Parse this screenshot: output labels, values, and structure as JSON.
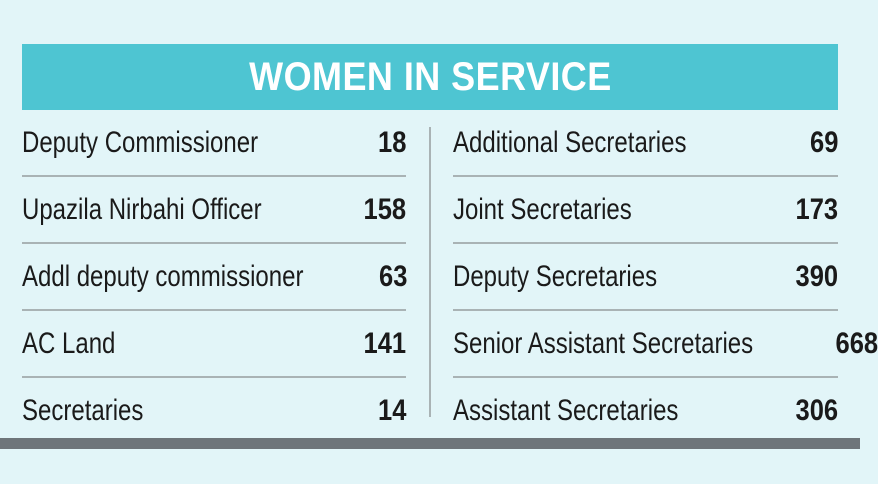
{
  "chart_data": {
    "type": "table",
    "title": "WOMEN IN SERVICE",
    "left_column": [
      {
        "label": "Deputy Commissioner",
        "value": 18
      },
      {
        "label": "Upazila Nirbahi Officer",
        "value": 158
      },
      {
        "label": "Addl deputy commissioner",
        "value": 63
      },
      {
        "label": "AC Land",
        "value": 141
      },
      {
        "label": "Secretaries",
        "value": 14
      }
    ],
    "right_column": [
      {
        "label": "Additional Secretaries",
        "value": 69
      },
      {
        "label": "Joint Secretaries",
        "value": 173
      },
      {
        "label": "Deputy Secretaries",
        "value": 390
      },
      {
        "label": "Senior Assistant Secretaries",
        "value": 668
      },
      {
        "label": "Assistant Secretaries",
        "value": 306
      }
    ]
  },
  "colors": {
    "background": "#e2f5f8",
    "banner": "#4ec5d2",
    "bottom_bar": "#6e757a",
    "rule": "#a9b3b5"
  }
}
